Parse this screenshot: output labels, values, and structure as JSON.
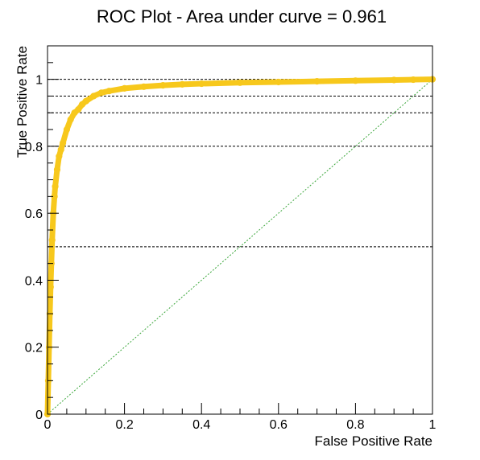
{
  "chart_data": {
    "type": "scatter",
    "title": "ROC Plot - Area under curve = 0.961",
    "xlabel": "False Positive Rate",
    "ylabel": "True Positive Rate",
    "xlim": [
      0,
      1
    ],
    "ylim": [
      0,
      1.1
    ],
    "x_ticks": [
      0,
      0.2,
      0.4,
      0.6,
      0.8,
      1
    ],
    "x_tick_labels": [
      "0",
      "0.2",
      "0.4",
      "0.6",
      "0.8",
      "1"
    ],
    "y_ticks": [
      0,
      0.2,
      0.4,
      0.6,
      0.8,
      1
    ],
    "y_tick_labels": [
      "0",
      "0.2",
      "0.4",
      "0.6",
      "0.8",
      "1"
    ],
    "reference_lines_y": [
      0.5,
      0.8,
      0.9,
      0.95,
      1.0
    ],
    "diagonal": {
      "x": [
        0,
        1
      ],
      "y": [
        0,
        1
      ]
    },
    "colors": {
      "curve": "#f7c81c",
      "diagonal": "#3aa63a",
      "reference": "#000000"
    },
    "series": [
      {
        "x": [
          0,
          0.002,
          0.004,
          0.006,
          0.008,
          0.01,
          0.012,
          0.015,
          0.018,
          0.02,
          0.025,
          0.03,
          0.035,
          0.04,
          0.05,
          0.06,
          0.07,
          0.08,
          0.09,
          0.1,
          0.12,
          0.14,
          0.16,
          0.2,
          0.25,
          0.3,
          0.35,
          0.4,
          0.5,
          0.6,
          0.7,
          0.8,
          0.9,
          0.95,
          1
        ],
        "y": [
          0,
          0.1,
          0.2,
          0.3,
          0.38,
          0.45,
          0.52,
          0.6,
          0.65,
          0.68,
          0.73,
          0.77,
          0.79,
          0.81,
          0.85,
          0.88,
          0.9,
          0.91,
          0.925,
          0.935,
          0.95,
          0.96,
          0.965,
          0.973,
          0.978,
          0.982,
          0.985,
          0.987,
          0.99,
          0.992,
          0.994,
          0.996,
          0.998,
          0.999,
          1
        ]
      }
    ]
  }
}
